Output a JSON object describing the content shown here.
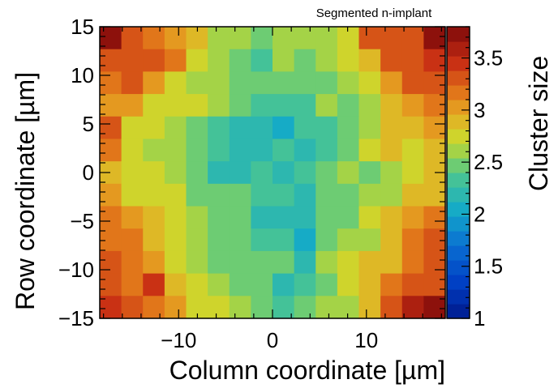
{
  "chart_data": {
    "type": "heatmap",
    "title": "Segmented n-implant",
    "xlabel": "Column coordinate [µm]",
    "ylabel": "Row coordinate [µm]",
    "zlabel": "Cluster size",
    "xlim": [
      -18.4,
      18.4
    ],
    "ylim": [
      -15,
      15
    ],
    "zlim": [
      1,
      3.8
    ],
    "x_ticks": [
      -10,
      0,
      10
    ],
    "x_tick_labels": [
      "−10",
      "0",
      "10"
    ],
    "y_ticks": [
      -15,
      -10,
      -5,
      0,
      5,
      10,
      15
    ],
    "y_tick_labels": [
      "−15",
      "−10",
      "−5",
      "0",
      "5",
      "10",
      "15"
    ],
    "z_ticks": [
      1,
      1.5,
      2,
      2.5,
      3,
      3.5
    ],
    "z_tick_labels": [
      "1",
      "1.5",
      "2",
      "2.5",
      "3",
      "3.5"
    ],
    "nx": 16,
    "ny": 13,
    "values_top_to_bottom": [
      [
        3.75,
        3.25,
        3.15,
        3.05,
        2.85,
        2.65,
        2.55,
        2.45,
        2.55,
        2.65,
        2.65,
        2.7,
        3.35,
        3.25,
        3.35,
        3.75
      ],
      [
        3.3,
        3.25,
        3.3,
        3.1,
        2.8,
        2.6,
        2.45,
        2.35,
        2.55,
        2.5,
        2.6,
        2.7,
        2.95,
        3.3,
        3.3,
        3.45
      ],
      [
        3.2,
        3.3,
        3.05,
        2.75,
        2.6,
        2.55,
        2.4,
        2.4,
        2.4,
        2.45,
        2.45,
        2.6,
        2.8,
        3.05,
        3.25,
        3.3
      ],
      [
        3.05,
        3.0,
        2.8,
        2.7,
        2.7,
        2.55,
        2.5,
        2.3,
        2.35,
        2.3,
        2.55,
        2.5,
        2.65,
        2.85,
        3.0,
        3.2
      ],
      [
        3.25,
        2.8,
        2.75,
        2.6,
        2.45,
        2.35,
        2.2,
        2.25,
        2.1,
        2.35,
        2.35,
        2.4,
        2.55,
        2.85,
        2.95,
        3.05
      ],
      [
        3.1,
        2.75,
        2.6,
        2.55,
        2.45,
        2.3,
        2.2,
        2.2,
        2.3,
        2.25,
        2.3,
        2.45,
        2.7,
        2.95,
        2.8,
        2.85
      ],
      [
        2.9,
        2.75,
        2.75,
        2.65,
        2.4,
        2.25,
        2.2,
        2.3,
        2.2,
        2.3,
        2.4,
        2.55,
        2.5,
        2.6,
        2.75,
        2.85
      ],
      [
        3.05,
        2.8,
        2.75,
        2.7,
        2.45,
        2.4,
        2.4,
        2.3,
        2.35,
        2.25,
        2.4,
        2.5,
        2.55,
        2.6,
        2.85,
        2.95
      ],
      [
        3.1,
        3.05,
        2.9,
        2.75,
        2.6,
        2.45,
        2.4,
        2.25,
        2.15,
        2.2,
        2.45,
        2.5,
        2.7,
        2.95,
        3.0,
        3.15
      ],
      [
        3.2,
        3.1,
        2.95,
        2.75,
        2.6,
        2.4,
        2.45,
        2.35,
        2.3,
        2.05,
        2.5,
        2.55,
        2.6,
        2.95,
        3.15,
        3.35
      ],
      [
        3.25,
        3.15,
        3.05,
        2.8,
        2.6,
        2.5,
        2.45,
        2.4,
        2.4,
        2.2,
        2.55,
        2.8,
        2.85,
        2.9,
        3.2,
        3.3
      ],
      [
        3.35,
        3.15,
        3.45,
        2.95,
        2.75,
        2.65,
        2.45,
        2.45,
        2.2,
        2.3,
        2.4,
        2.8,
        2.85,
        3.1,
        3.3,
        3.3
      ],
      [
        3.4,
        3.25,
        3.15,
        3.0,
        2.75,
        2.7,
        2.55,
        2.45,
        2.35,
        2.45,
        2.6,
        2.65,
        2.95,
        3.25,
        3.6,
        3.75
      ]
    ]
  }
}
